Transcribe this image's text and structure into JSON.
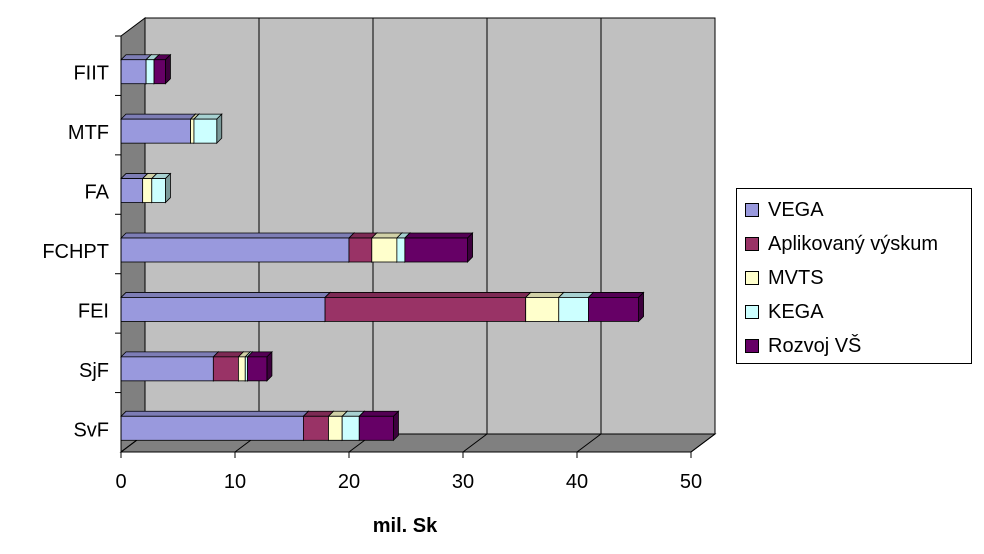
{
  "chart_data": {
    "type": "bar",
    "orientation": "horizontal",
    "stacked": true,
    "three_d": true,
    "title": "",
    "xlabel": "mil. Sk",
    "ylabel": "",
    "xlim": [
      0,
      50
    ],
    "x_ticks": [
      "0",
      "10",
      "20",
      "30",
      "40",
      "50"
    ],
    "grid": true,
    "legend_position": "right",
    "categories": [
      "FIIT",
      "MTF",
      "FA",
      "FCHPT",
      "FEI",
      "SjF",
      "SvF"
    ],
    "series": [
      {
        "name": "VEGA",
        "color": "#9999dd",
        "values": [
          2.2,
          6.1,
          1.9,
          20.0,
          17.9,
          8.1,
          16.0
        ]
      },
      {
        "name": "Aplikovaný výskum",
        "color": "#993366",
        "values": [
          0.0,
          0.0,
          0.0,
          2.0,
          17.6,
          2.2,
          2.2
        ]
      },
      {
        "name": "MVTS",
        "color": "#ffffcc",
        "values": [
          0.0,
          0.3,
          0.8,
          2.2,
          2.9,
          0.6,
          1.2
        ]
      },
      {
        "name": "KEGA",
        "color": "#ccffff",
        "values": [
          0.7,
          2.0,
          1.2,
          0.7,
          2.6,
          0.2,
          1.5
        ]
      },
      {
        "name": "Rozvoj VŠ",
        "color": "#660066",
        "values": [
          1.0,
          0.0,
          0.0,
          5.5,
          4.4,
          1.7,
          3.0
        ]
      }
    ]
  },
  "colors": {
    "wall": "#c0c0c0",
    "floor": "#808080",
    "side_wall": "#808080",
    "gridline": "#000000"
  }
}
